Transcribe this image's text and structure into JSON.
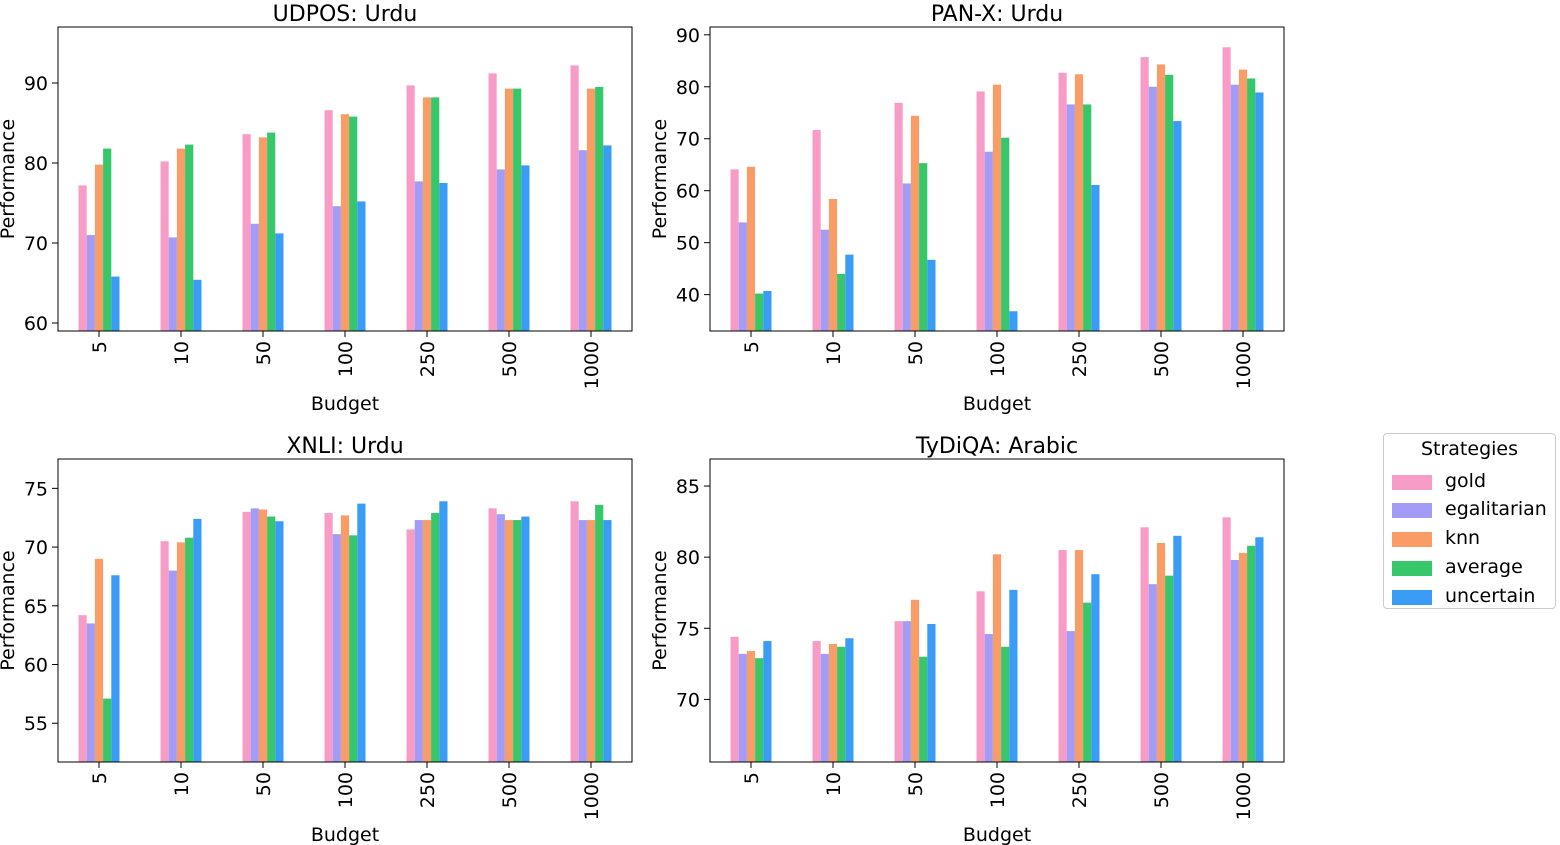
{
  "chart_data": [
    {
      "type": "bar",
      "title": "UDPOS: Urdu",
      "xlabel": "Budget",
      "ylabel": "Performance",
      "categories": [
        "5",
        "10",
        "50",
        "100",
        "250",
        "500",
        "1000"
      ],
      "ylim": [
        59,
        97
      ],
      "yticks": [
        60,
        70,
        80,
        90
      ],
      "series": [
        {
          "name": "gold",
          "values": [
            77.2,
            80.2,
            83.6,
            86.6,
            89.7,
            91.2,
            92.2
          ]
        },
        {
          "name": "egalitarian",
          "values": [
            71.0,
            70.7,
            72.4,
            74.6,
            77.7,
            79.2,
            81.6
          ]
        },
        {
          "name": "knn",
          "values": [
            79.8,
            81.8,
            83.2,
            86.1,
            88.2,
            89.3,
            89.3
          ]
        },
        {
          "name": "average",
          "values": [
            81.8,
            82.3,
            83.8,
            85.8,
            88.2,
            89.3,
            89.5
          ]
        },
        {
          "name": "uncertain",
          "values": [
            65.8,
            65.4,
            71.2,
            75.2,
            77.5,
            79.7,
            82.2
          ]
        }
      ]
    },
    {
      "type": "bar",
      "title": "PAN-X: Urdu",
      "xlabel": "Budget",
      "ylabel": "Performance",
      "categories": [
        "5",
        "10",
        "50",
        "100",
        "250",
        "500",
        "1000"
      ],
      "ylim": [
        33,
        91.5
      ],
      "yticks": [
        40,
        50,
        60,
        70,
        80,
        90
      ],
      "series": [
        {
          "name": "gold",
          "values": [
            64.1,
            71.7,
            76.9,
            79.1,
            82.7,
            85.7,
            87.6
          ]
        },
        {
          "name": "egalitarian",
          "values": [
            53.9,
            52.5,
            61.4,
            67.5,
            76.6,
            80.0,
            80.4
          ]
        },
        {
          "name": "knn",
          "values": [
            64.6,
            58.4,
            74.4,
            80.4,
            82.4,
            84.3,
            83.3
          ]
        },
        {
          "name": "average",
          "values": [
            40.2,
            44.0,
            65.3,
            70.2,
            76.6,
            82.3,
            81.6
          ]
        },
        {
          "name": "uncertain",
          "values": [
            40.7,
            47.7,
            46.7,
            36.8,
            61.1,
            73.4,
            78.9
          ]
        }
      ]
    },
    {
      "type": "bar",
      "title": "XNLI: Urdu",
      "xlabel": "Budget",
      "ylabel": "Performance",
      "categories": [
        "5",
        "10",
        "50",
        "100",
        "250",
        "500",
        "1000"
      ],
      "ylim": [
        51.7,
        77.5
      ],
      "yticks": [
        55,
        60,
        65,
        70,
        75
      ],
      "series": [
        {
          "name": "gold",
          "values": [
            64.2,
            70.5,
            73.0,
            72.9,
            71.5,
            73.3,
            73.9
          ]
        },
        {
          "name": "egalitarian",
          "values": [
            63.5,
            68.0,
            73.3,
            71.1,
            72.3,
            72.8,
            72.3
          ]
        },
        {
          "name": "knn",
          "values": [
            69.0,
            70.4,
            73.2,
            72.7,
            72.3,
            72.3,
            72.3
          ]
        },
        {
          "name": "average",
          "values": [
            57.1,
            70.8,
            72.6,
            71.0,
            72.9,
            72.3,
            73.6
          ]
        },
        {
          "name": "uncertain",
          "values": [
            67.6,
            72.4,
            72.2,
            73.7,
            73.9,
            72.6,
            72.3
          ]
        }
      ]
    },
    {
      "type": "bar",
      "title": "TyDiQA: Arabic",
      "xlabel": "Budget",
      "ylabel": "Performance",
      "categories": [
        "5",
        "10",
        "50",
        "100",
        "250",
        "500",
        "1000"
      ],
      "ylim": [
        65.6,
        86.9
      ],
      "yticks": [
        70,
        75,
        80,
        85
      ],
      "series": [
        {
          "name": "gold",
          "values": [
            74.4,
            74.1,
            75.5,
            77.6,
            80.5,
            82.1,
            82.8
          ]
        },
        {
          "name": "egalitarian",
          "values": [
            73.2,
            73.2,
            75.5,
            74.6,
            74.8,
            78.1,
            79.8
          ]
        },
        {
          "name": "knn",
          "values": [
            73.4,
            73.9,
            77.0,
            80.2,
            80.5,
            81.0,
            80.3
          ]
        },
        {
          "name": "average",
          "values": [
            72.9,
            73.7,
            73.0,
            73.7,
            76.8,
            78.7,
            80.8
          ]
        },
        {
          "name": "uncertain",
          "values": [
            74.1,
            74.3,
            75.3,
            77.7,
            78.8,
            81.5,
            81.4
          ]
        }
      ]
    }
  ],
  "legend": {
    "title": "Strategies",
    "items": [
      {
        "label": "gold",
        "color": "#f79cc6"
      },
      {
        "label": "egalitarian",
        "color": "#a29cf7"
      },
      {
        "label": "knn",
        "color": "#f99c66"
      },
      {
        "label": "average",
        "color": "#36c76a"
      },
      {
        "label": "uncertain",
        "color": "#3a9cf6"
      }
    ]
  }
}
